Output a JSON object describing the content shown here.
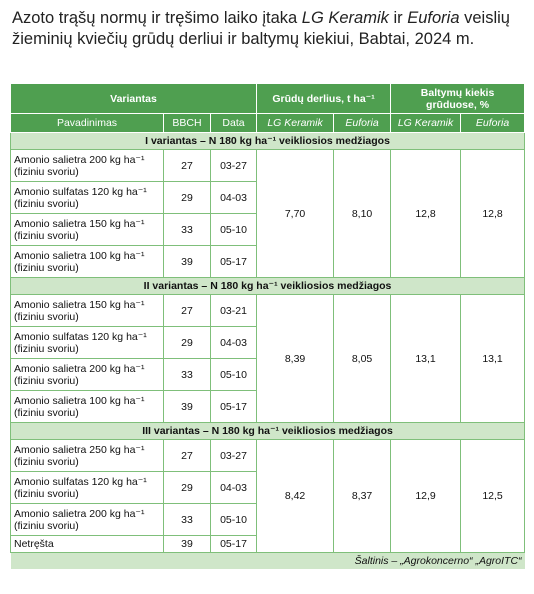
{
  "header": {
    "title": [
      "Azoto trąšų normų ir tręšimo laiko įtaka ",
      "LG Keramik",
      " ir ",
      "Euforia",
      " veislių žieminių kviečių grūdų derliui ir baltymų kiekiui, Babtai, 2024 m."
    ]
  },
  "table": {
    "head1": [
      "Variantas",
      "Grūdų derlius, t ha⁻¹",
      "Baltymų kiekis grūduose, %"
    ],
    "head2": [
      "Pavadinimas",
      "BBCH",
      "Data",
      "LG Keramik",
      "Euforia",
      "LG Keramik",
      "Euforia"
    ],
    "groups": [
      {
        "title": "I variantas – N 180 kg ha⁻¹ veikliosios medžiagos",
        "rows": [
          [
            "Amonio salietra 200 kg ha⁻¹ (fiziniu svoriu)",
            "27",
            "03-27"
          ],
          [
            "Amonio sulfatas 120 kg ha⁻¹ (fiziniu svoriu)",
            "29",
            "04-03"
          ],
          [
            "Amonio salietra 150 kg ha⁻¹ (fiziniu svoriu)",
            "33",
            "05-10"
          ],
          [
            "Amonio salietra 100 kg ha⁻¹ (fiziniu svoriu)",
            "39",
            "05-17"
          ]
        ],
        "values": [
          "7,70",
          "8,10",
          "12,8",
          "12,8"
        ]
      },
      {
        "title": "II variantas – N 180 kg ha⁻¹ veikliosios medžiagos",
        "rows": [
          [
            "Amonio salietra 150 kg ha⁻¹ (fiziniu svoriu)",
            "27",
            "03-21"
          ],
          [
            "Amonio sulfatas 120 kg ha⁻¹ (fiziniu svoriu)",
            "29",
            "04-03"
          ],
          [
            "Amonio salietra 200 kg ha⁻¹ (fiziniu svoriu)",
            "33",
            "05-10"
          ],
          [
            "Amonio salietra 100 kg ha⁻¹ (fiziniu svoriu)",
            "39",
            "05-17"
          ]
        ],
        "values": [
          "8,39",
          "8,05",
          "13,1",
          "13,1"
        ]
      },
      {
        "title": "III variantas – N 180 kg ha⁻¹ veikliosios medžiagos",
        "rows": [
          [
            "Amonio salietra 250 kg ha⁻¹ (fiziniu svoriu)",
            "27",
            "03-27"
          ],
          [
            "Amonio sulfatas 120 kg ha⁻¹ (fiziniu svoriu)",
            "29",
            "04-03"
          ],
          [
            "Amonio salietra 200 kg ha⁻¹ (fiziniu svoriu)",
            "33",
            "05-10"
          ],
          [
            "Netręšta",
            "39",
            "05-17"
          ]
        ],
        "values": [
          "8,42",
          "8,37",
          "12,9",
          "12,5"
        ]
      }
    ],
    "source": "Šaltinis – „Agrokoncerno“ „AgroITC“"
  }
}
